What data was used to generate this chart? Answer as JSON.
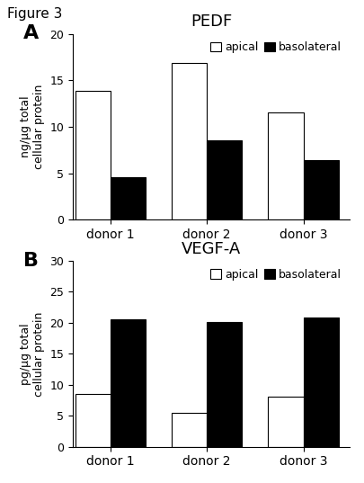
{
  "figure_label": "Figure 3",
  "panel_A": {
    "title": "PEDF",
    "ylabel": "ng/µg total\ncellular protein",
    "ylim": [
      0,
      20
    ],
    "yticks": [
      0,
      5,
      10,
      15,
      20
    ],
    "donors": [
      "donor 1",
      "donor 2",
      "donor 3"
    ],
    "apical": [
      13.9,
      16.9,
      11.5
    ],
    "basolateral": [
      4.6,
      8.5,
      6.4
    ]
  },
  "panel_B": {
    "title": "VEGF-A",
    "ylabel": "pg/µg total\ncellular protein",
    "ylim": [
      0,
      30
    ],
    "yticks": [
      0,
      5,
      10,
      15,
      20,
      25,
      30
    ],
    "donors": [
      "donor 1",
      "donor 2",
      "donor 3"
    ],
    "apical": [
      8.5,
      5.5,
      8.1
    ],
    "basolateral": [
      20.5,
      20.1,
      20.8
    ]
  },
  "apical_color": "white",
  "basolateral_color": "black",
  "bar_edge_color": "black",
  "bar_width": 0.42,
  "group_centers": [
    0.0,
    1.15,
    2.3
  ],
  "xlim": [
    -0.45,
    2.85
  ],
  "panel_label_fontsize": 16,
  "title_fontsize": 13,
  "tick_fontsize": 9,
  "ylabel_fontsize": 9,
  "legend_fontsize": 9,
  "xlabel_fontsize": 10
}
